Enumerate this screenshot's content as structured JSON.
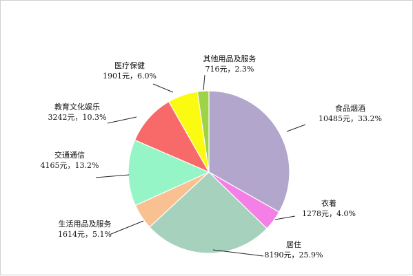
{
  "chart_data": {
    "type": "pie",
    "title": "",
    "start_angle_deg": 90,
    "direction": "clockwise",
    "legend": "none",
    "slices": [
      {
        "name": "食品烟酒",
        "value": 10485,
        "percent": 33.2,
        "label_line1": "食品烟酒",
        "label_line2": "10485元，33.2%",
        "color": "#b3a6cc"
      },
      {
        "name": "衣着",
        "value": 1278,
        "percent": 4.0,
        "label_line1": "衣着",
        "label_line2": "1278元，4.0%",
        "color": "#f47fe6"
      },
      {
        "name": "居住",
        "value": 8190,
        "percent": 25.9,
        "label_line1": "居住",
        "label_line2": "8190元，25.9%",
        "color": "#a6d1bc"
      },
      {
        "name": "生活用品及服务",
        "value": 1614,
        "percent": 5.1,
        "label_line1": "生活用品及服务",
        "label_line2": "1614元，5.1%",
        "color": "#f9c191"
      },
      {
        "name": "交通通信",
        "value": 4165,
        "percent": 13.2,
        "label_line1": "交通通信",
        "label_line2": "4165元，13.2%",
        "color": "#96f5c6"
      },
      {
        "name": "教育文化娱乐",
        "value": 3242,
        "percent": 10.3,
        "label_line1": "教育文化娱乐",
        "label_line2": "3242元，10.3%",
        "color": "#f86a6a"
      },
      {
        "name": "医疗保健",
        "value": 1901,
        "percent": 6.0,
        "label_line1": "医疗保健",
        "label_line2": "1901元，6.0%",
        "color": "#fbfb12"
      },
      {
        "name": "其他用品及服务",
        "value": 716,
        "percent": 2.3,
        "label_line1": "其他用品及服务",
        "label_line2": "716元，2.3%",
        "color": "#9ed247"
      }
    ]
  }
}
